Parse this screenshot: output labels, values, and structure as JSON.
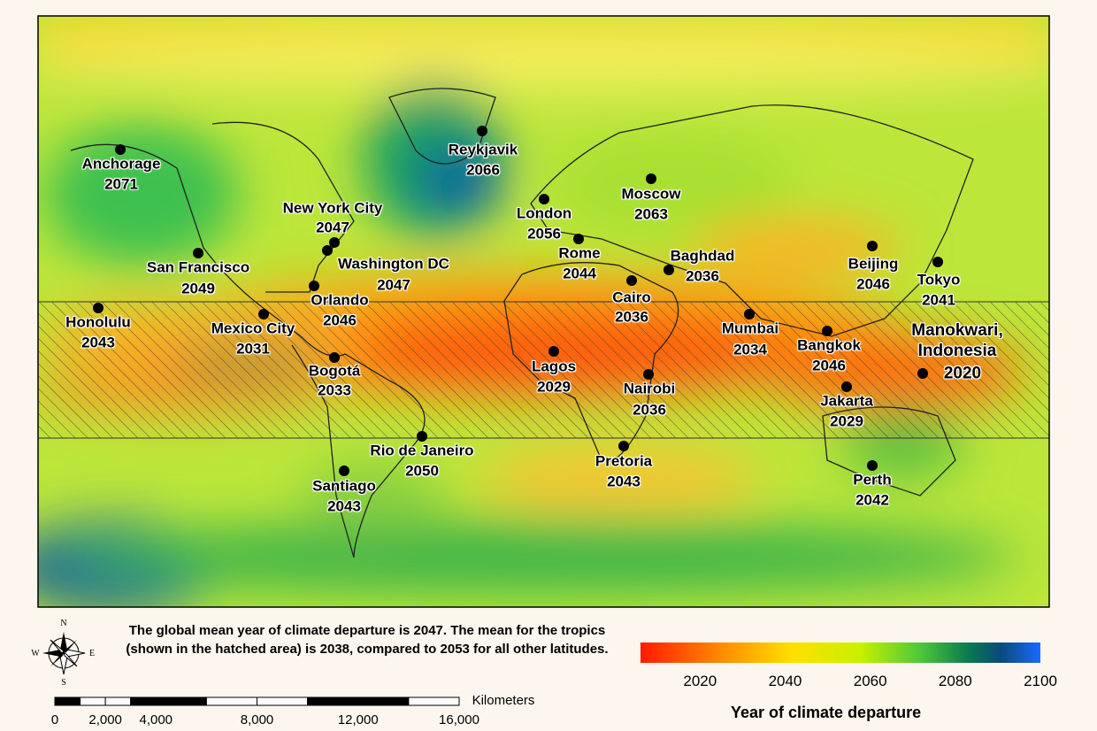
{
  "cities": [
    {
      "name": "Anchorage",
      "year": 2071
    },
    {
      "name": "Reykjavik",
      "year": 2066
    },
    {
      "name": "Moscow",
      "year": 2063
    },
    {
      "name": "London",
      "year": 2056
    },
    {
      "name": "New York City",
      "year": 2047
    },
    {
      "name": "Washington DC",
      "year": 2047
    },
    {
      "name": "San Francisco",
      "year": 2049
    },
    {
      "name": "Rome",
      "year": 2044
    },
    {
      "name": "Baghdad",
      "year": 2036
    },
    {
      "name": "Beijing",
      "year": 2046
    },
    {
      "name": "Tokyo",
      "year": 2041
    },
    {
      "name": "Orlando",
      "year": 2046
    },
    {
      "name": "Cairo",
      "year": 2036
    },
    {
      "name": "Honolulu",
      "year": 2043
    },
    {
      "name": "Mexico City",
      "year": 2031
    },
    {
      "name": "Mumbai",
      "year": 2034
    },
    {
      "name": "Bangkok",
      "year": 2046
    },
    {
      "name": "Manokwari, Indonesia",
      "year": 2020
    },
    {
      "name": "Lagos",
      "year": 2029
    },
    {
      "name": "Bogotá",
      "year": 2033
    },
    {
      "name": "Nairobi",
      "year": 2036
    },
    {
      "name": "Jakarta",
      "year": 2029
    },
    {
      "name": "Rio de Janeiro",
      "year": 2050
    },
    {
      "name": "Pretoria",
      "year": 2043
    },
    {
      "name": "Perth",
      "year": 2042
    },
    {
      "name": "Santiago",
      "year": 2043
    }
  ],
  "caption": "The global mean year of climate departure is 2047. The mean for the tropics (shown in the hatched area) is 2038, compared to 2053 for all other latitudes.",
  "legend": {
    "title": "Year of climate departure",
    "range": [
      2006,
      2100
    ],
    "ticks": [
      2020,
      2040,
      2060,
      2080,
      2100
    ]
  },
  "scale_bar": {
    "unit": "Kilometers",
    "range": [
      0,
      16000
    ],
    "ticks": [
      0,
      {
        "value": 2000,
        "label": "2,000"
      },
      {
        "value": 4000,
        "label": "4,000"
      },
      {
        "value": 8000,
        "label": "8,000"
      },
      {
        "value": 12000,
        "label": "12,000"
      },
      {
        "value": 16000,
        "label": "16,000"
      }
    ]
  },
  "compass": {
    "n": "N",
    "s": "S",
    "e": "E",
    "w": "W"
  }
}
